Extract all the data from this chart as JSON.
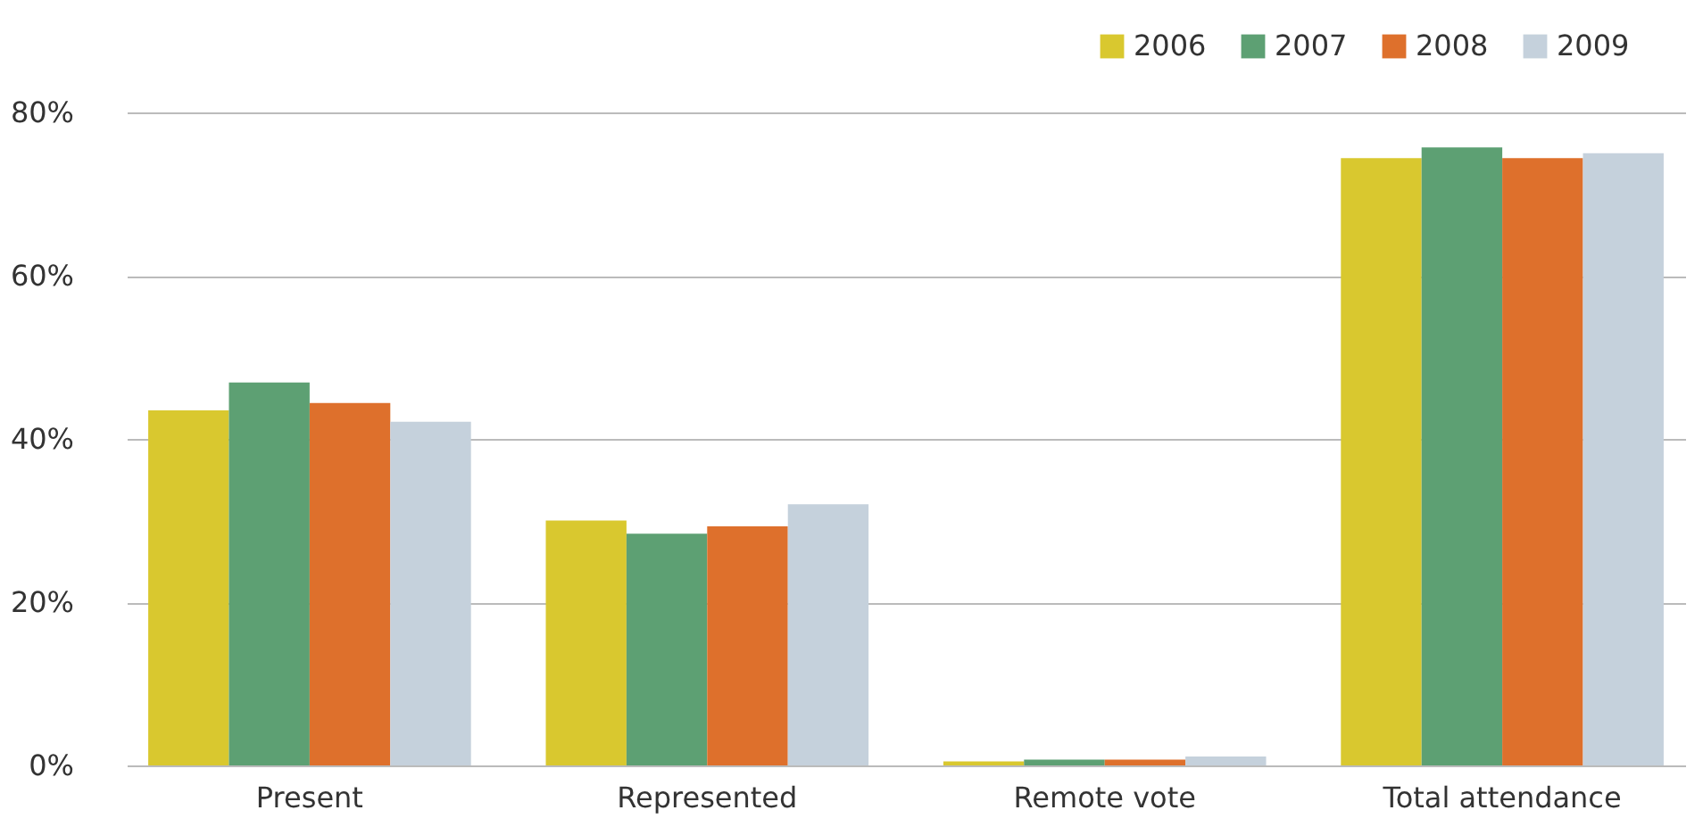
{
  "chart_data": {
    "type": "bar",
    "categories": [
      "Present",
      "Represented",
      "Remote vote",
      "Total attendance"
    ],
    "series": [
      {
        "name": "2006",
        "color": "#d9c82f",
        "values": [
          43.5,
          30.0,
          0.5,
          74.4
        ]
      },
      {
        "name": "2007",
        "color": "#5da073",
        "values": [
          46.9,
          28.4,
          0.7,
          75.7
        ]
      },
      {
        "name": "2008",
        "color": "#de702c",
        "values": [
          44.4,
          29.3,
          0.7,
          74.4
        ]
      },
      {
        "name": "2009",
        "color": "#c5d1dc",
        "values": [
          42.1,
          32.0,
          1.1,
          75.0
        ]
      }
    ],
    "ylim": [
      0,
      80
    ],
    "yticks": [
      {
        "value": 0,
        "label": "0%"
      },
      {
        "value": 20,
        "label": "20%"
      },
      {
        "value": 40,
        "label": "40%"
      },
      {
        "value": 60,
        "label": "60%"
      },
      {
        "value": 80,
        "label": "80%"
      }
    ],
    "grid": "y",
    "legend": "top right"
  }
}
